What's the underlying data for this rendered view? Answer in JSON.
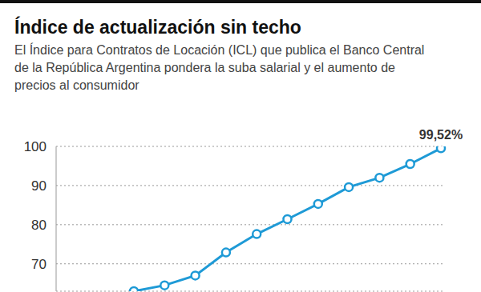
{
  "chart_data": {
    "type": "line",
    "title": "Índice de actualización sin techo",
    "subtitle": "El Índice para Contratos de Locación (ICL) que publica el Banco Central de la República Argentina pondera la suba salarial y el aumento de precios al consumidor",
    "categories": [
      null,
      null,
      null,
      null,
      null,
      null,
      null,
      null,
      null,
      null,
      null
    ],
    "values": [
      63,
      64.5,
      67,
      72.9,
      77.6,
      81.4,
      85.3,
      89.6,
      92,
      95.5,
      99.52
    ],
    "value_labels": [
      null,
      null,
      null,
      null,
      null,
      null,
      null,
      null,
      null,
      null,
      "99,52%"
    ],
    "color": "#1e9ad6",
    "ylim": [
      63,
      100
    ],
    "yticks": [
      70,
      80,
      90,
      100
    ],
    "grid": true,
    "marker": "circle",
    "tick_labels": "y"
  }
}
